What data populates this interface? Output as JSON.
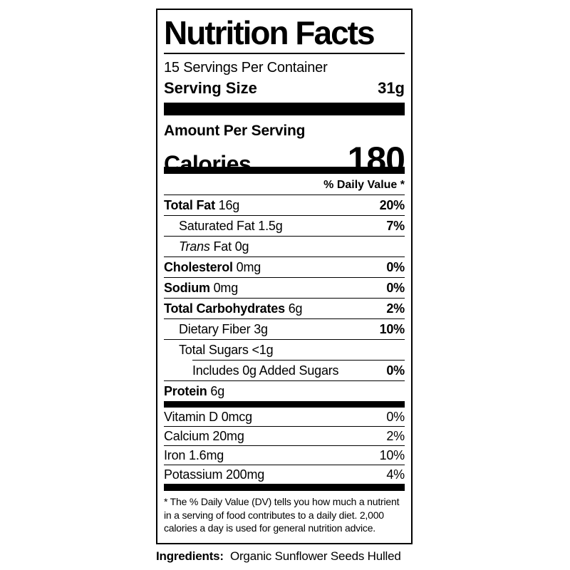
{
  "colors": {
    "text": "#000000",
    "background": "#ffffff",
    "divider": "#000000"
  },
  "nutrition_label": {
    "title": "Nutrition Facts",
    "servings_per_container": "15 Servings Per Container",
    "serving_size": {
      "label": "Serving Size",
      "value": "31g"
    },
    "amount_per_serving": "Amount Per Serving",
    "calories": {
      "label": "Calories",
      "value": "180"
    },
    "daily_value_header": "% Daily Value *",
    "nutrient_rows": [
      {
        "name": "Total Fat",
        "amount": "16g",
        "dv": "20%",
        "name_bold": true,
        "dv_bold": true,
        "indent": 0,
        "separator": "full"
      },
      {
        "name": "Saturated Fat",
        "amount": "1.5g",
        "dv": "7%",
        "name_bold": false,
        "dv_bold": true,
        "indent": 1,
        "separator": "full"
      },
      {
        "name": "Fat",
        "name_italic_prefix": "Trans",
        "amount": "0g",
        "dv": "",
        "name_bold": false,
        "dv_bold": false,
        "indent": 1,
        "separator": "full"
      },
      {
        "name": "Cholesterol",
        "amount": "0mg",
        "dv": "0%",
        "name_bold": true,
        "dv_bold": true,
        "indent": 0,
        "separator": "full"
      },
      {
        "name": "Sodium",
        "amount": "0mg",
        "dv": "0%",
        "name_bold": true,
        "dv_bold": true,
        "indent": 0,
        "separator": "full"
      },
      {
        "name": "Total Carbohydrates",
        "amount": "6g",
        "dv": "2%",
        "name_bold": true,
        "dv_bold": true,
        "indent": 0,
        "separator": "full"
      },
      {
        "name": "Dietary Fiber",
        "amount": "3g",
        "dv": "10%",
        "name_bold": false,
        "dv_bold": true,
        "indent": 1,
        "separator": "full"
      },
      {
        "name": "Total Sugars",
        "amount": "<1g",
        "dv": "",
        "name_bold": false,
        "dv_bold": false,
        "indent": 1,
        "separator": "indented"
      },
      {
        "name": "Includes 0g Added Sugars",
        "amount": "",
        "dv": "0%",
        "name_bold": false,
        "dv_bold": true,
        "indent": 2,
        "separator": "full"
      },
      {
        "name": "Protein",
        "amount": "6g",
        "dv": "",
        "name_bold": true,
        "dv_bold": false,
        "indent": 0,
        "separator": "none"
      }
    ],
    "vitamin_rows": [
      {
        "name": "Vitamin D",
        "amount": "0mcg",
        "dv": "0%",
        "separator": "full"
      },
      {
        "name": "Calcium",
        "amount": "20mg",
        "dv": "2%",
        "separator": "full"
      },
      {
        "name": "Iron",
        "amount": "1.6mg",
        "dv": "10%",
        "separator": "full"
      },
      {
        "name": "Potassium",
        "amount": "200mg",
        "dv": "4%",
        "separator": "full"
      }
    ],
    "footnote": "* The % Daily Value (DV) tells you how much a nutrient in a serving of food contributes to a daily diet. 2,000 calories a day is used for general nutrition advice.",
    "ingredients": {
      "label": "Ingredients:",
      "value": "Organic Sunflower Seeds Hulled"
    }
  }
}
